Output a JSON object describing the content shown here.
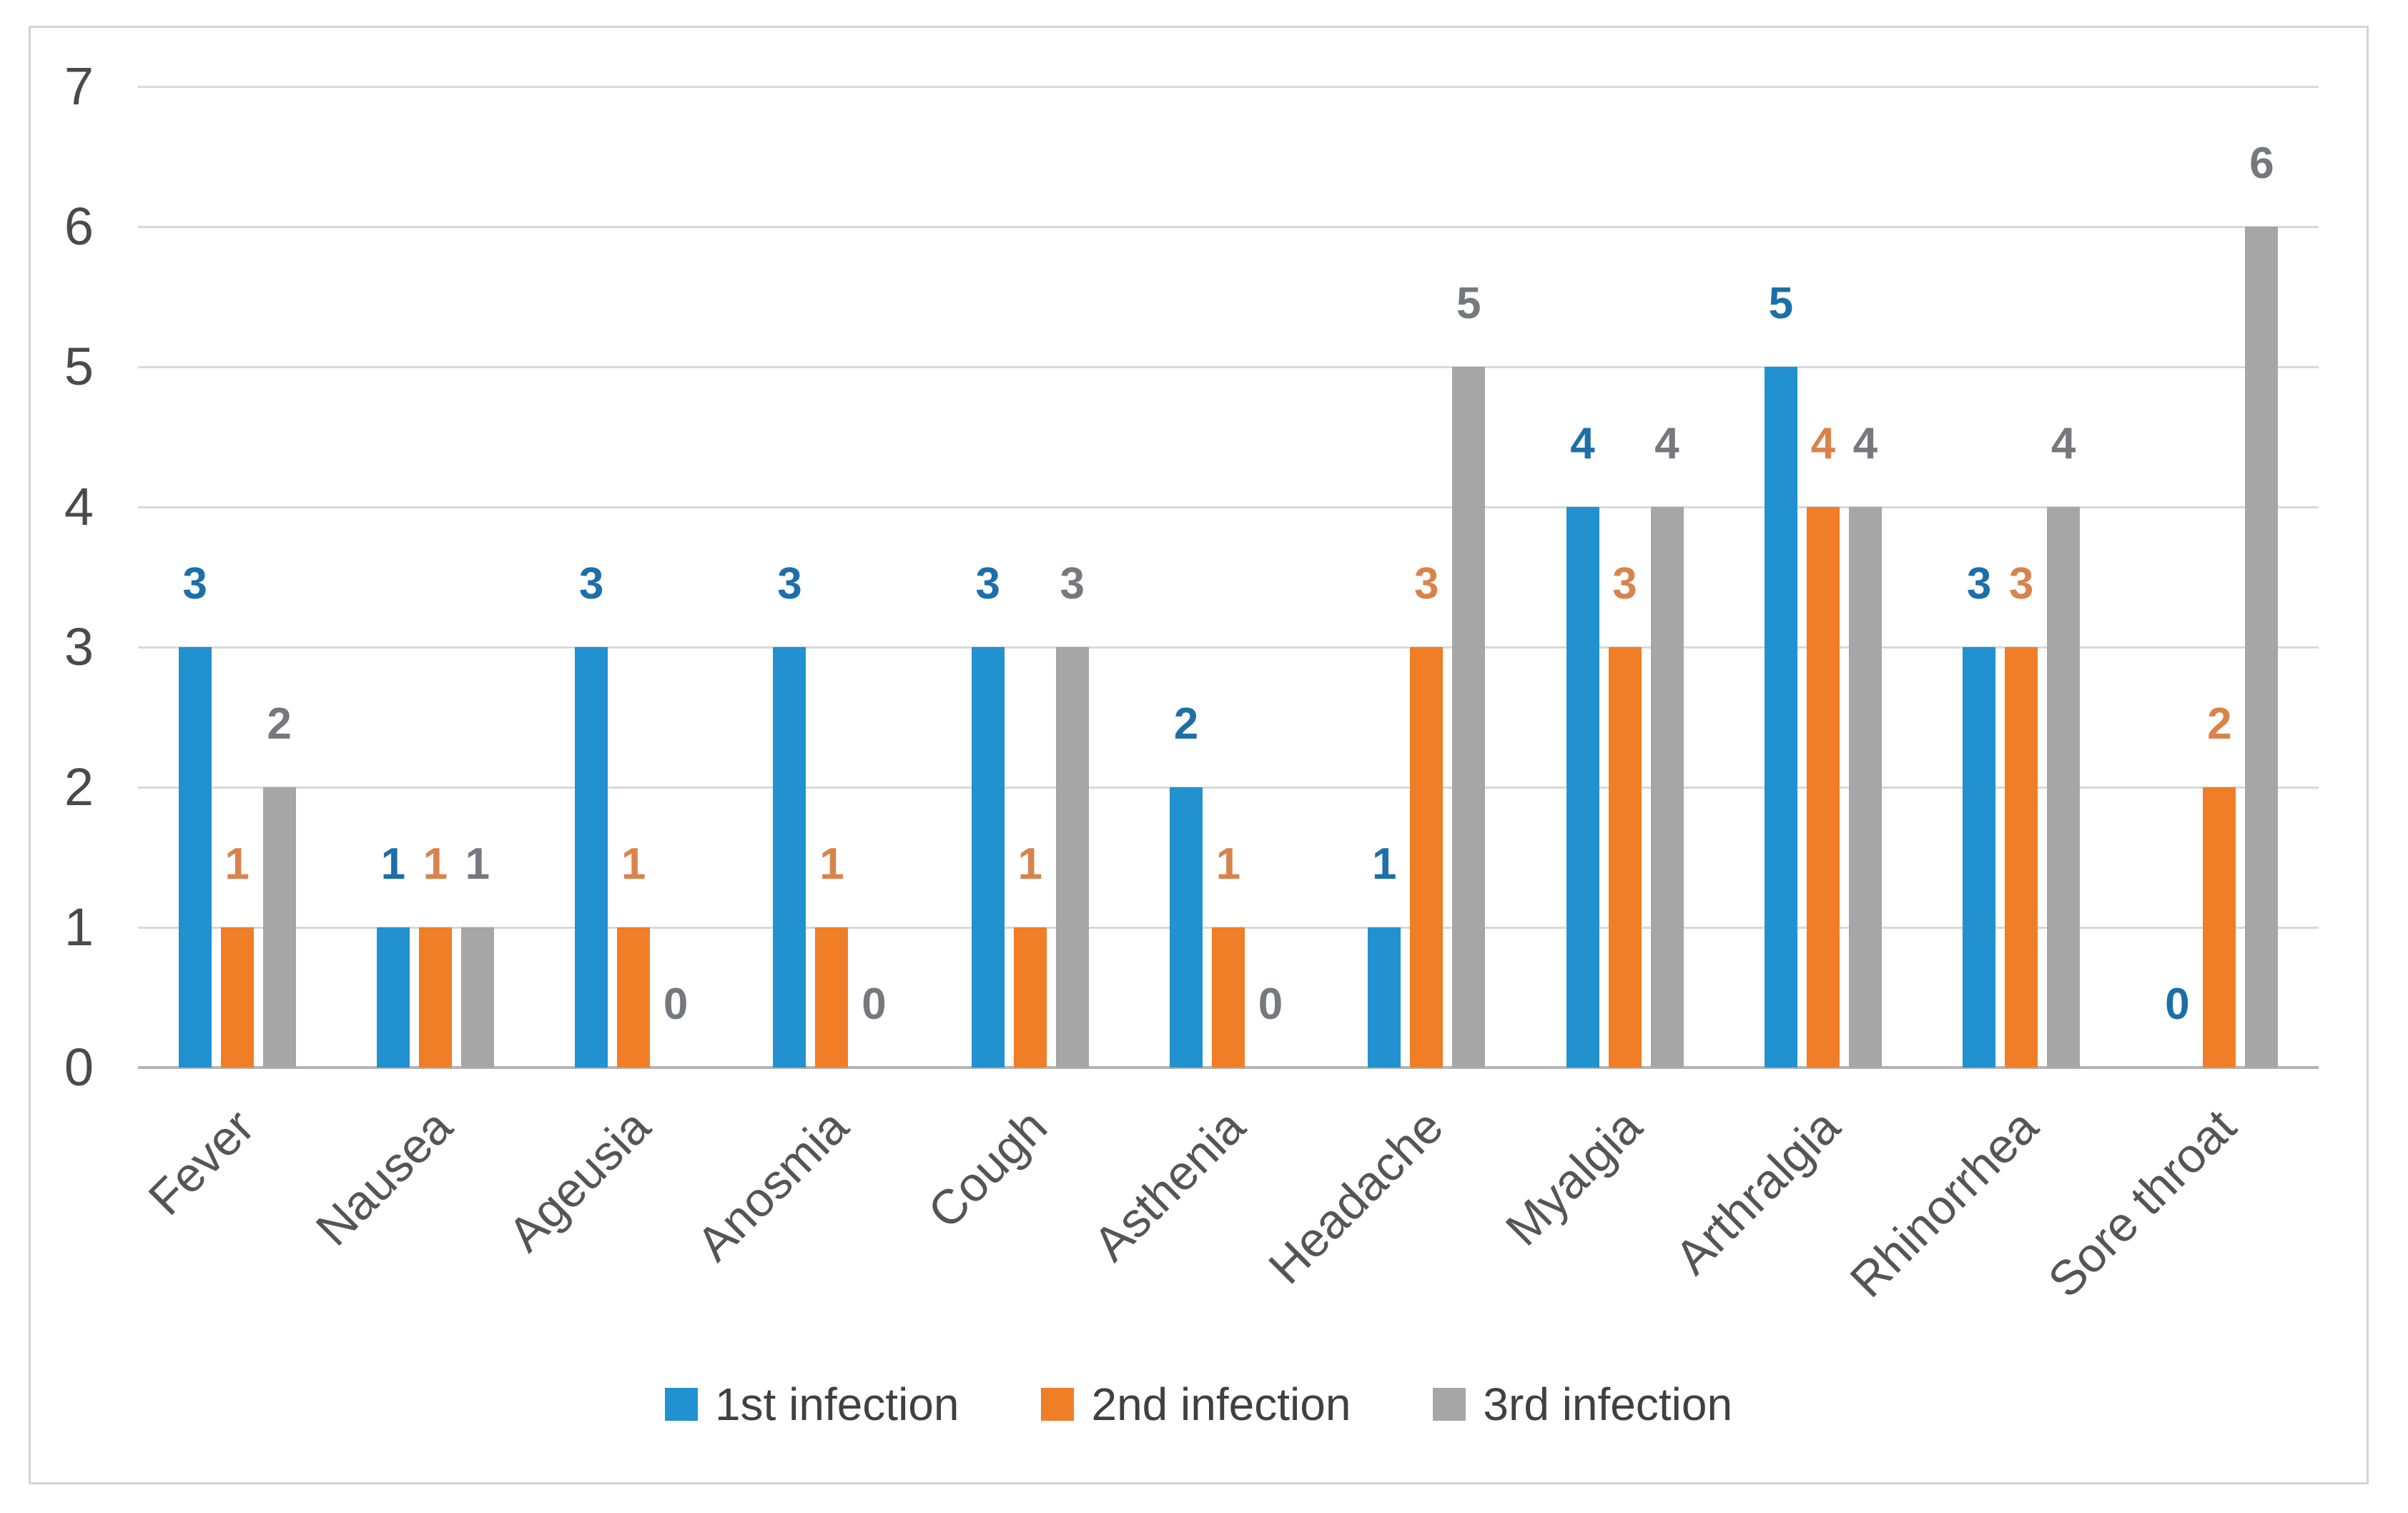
{
  "chart_data": {
    "type": "bar",
    "title": "",
    "xlabel": "",
    "ylabel": "",
    "categories": [
      "Fever",
      "Nausea",
      "Ageusia",
      "Anosmia",
      "Cough",
      "Asthenia",
      "Headache",
      "Myalgia",
      "Arthralgia",
      "Rhinorrhea",
      "Sore throat"
    ],
    "series": [
      {
        "name": "1st infection",
        "color": "#2191D0",
        "label_color": "#1C6FA9",
        "values": [
          3,
          1,
          3,
          3,
          3,
          2,
          1,
          4,
          5,
          3,
          0
        ]
      },
      {
        "name": "2nd infection",
        "color": "#F07E27",
        "label_color": "#D9834B",
        "values": [
          1,
          1,
          1,
          1,
          1,
          1,
          3,
          3,
          4,
          3,
          2
        ]
      },
      {
        "name": "3rd infection",
        "color": "#A6A6A6",
        "label_color": "#75797E",
        "values": [
          2,
          1,
          0,
          0,
          3,
          0,
          5,
          4,
          4,
          4,
          6
        ]
      }
    ],
    "ylim": [
      0,
      7
    ],
    "yticks": [
      0,
      1,
      2,
      3,
      4,
      5,
      6,
      7
    ],
    "grid": true,
    "data_labels": true,
    "legend_position": "bottom",
    "colors": {
      "gridline": "#D9D9D9",
      "baseline": "#B3B3B3",
      "axis_text": "#4A4A4A",
      "category_text": "#555555",
      "legend_text": "#404040",
      "frame_border": "#D4D4D4",
      "background": "#FFFFFF"
    }
  }
}
